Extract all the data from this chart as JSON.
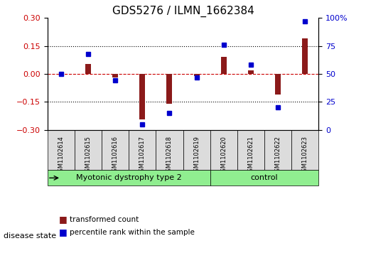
{
  "title": "GDS5276 / ILMN_1662384",
  "samples": [
    "GSM1102614",
    "GSM1102615",
    "GSM1102616",
    "GSM1102617",
    "GSM1102618",
    "GSM1102619",
    "GSM1102620",
    "GSM1102621",
    "GSM1102622",
    "GSM1102623"
  ],
  "red_values": [
    0.0,
    0.055,
    -0.02,
    -0.245,
    -0.16,
    -0.01,
    0.09,
    0.02,
    -0.11,
    0.19
  ],
  "blue_values": [
    50,
    68,
    44,
    5,
    15,
    47,
    76,
    58,
    20,
    97
  ],
  "disease_groups": [
    {
      "label": "Myotonic dystrophy type 2",
      "start": 0,
      "end": 6,
      "color": "#90EE90"
    },
    {
      "label": "control",
      "start": 6,
      "end": 10,
      "color": "#90EE90"
    }
  ],
  "ylim_left": [
    -0.3,
    0.3
  ],
  "ylim_right": [
    0,
    100
  ],
  "yticks_left": [
    -0.3,
    -0.15,
    0.0,
    0.15,
    0.3
  ],
  "yticks_right": [
    0,
    25,
    50,
    75,
    100
  ],
  "ytick_labels_right": [
    "0",
    "25",
    "50",
    "75",
    "100%"
  ],
  "hlines": [
    0.15,
    0.0,
    -0.15
  ],
  "red_color": "#8B1A1A",
  "blue_color": "#0000CD",
  "dotted_color": "#000000",
  "zero_line_color": "#CC0000",
  "bar_width": 0.35,
  "legend_red": "transformed count",
  "legend_blue": "percentile rank within the sample",
  "disease_label": "disease state",
  "bg_sample_color": "#DCDCDC"
}
